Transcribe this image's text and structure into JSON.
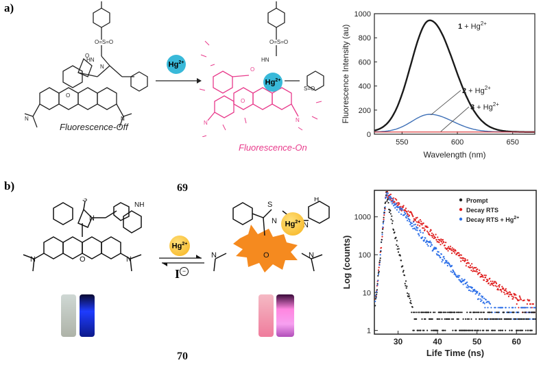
{
  "panels": {
    "a": {
      "label": "a)",
      "caption_off": "Fluorescence-Off",
      "caption_on": "Fluorescence-On",
      "reagent": "Hg2+",
      "reagent_base": "Hg",
      "reagent_sup": "2+"
    },
    "b": {
      "label": "b)",
      "compound_top": "69",
      "compound_bottom": "70",
      "reagent_base": "Hg",
      "reagent_sup": "2+",
      "reverse_reagent": "I"
    }
  },
  "colors": {
    "ion_a": "#39b9d9",
    "ion_b": "#f6b21c",
    "pink": "#e83a8b",
    "orange": "#f58a1f",
    "series_1": "#1a1a1a",
    "series_2": "#3d6fb6",
    "series_3": "#d62728",
    "prompt": "#222222",
    "decay": "#e02020",
    "decay_hg": "#2c6fe8"
  },
  "chart_data": [
    {
      "type": "line",
      "xlabel": "Wavelength (nm)",
      "ylabel": "Fluorescence Intensity (au)",
      "xlim": [
        525,
        670
      ],
      "ylim": [
        0,
        1000
      ],
      "xticks": [
        550,
        600,
        650
      ],
      "yticks": [
        0,
        200,
        400,
        600,
        800,
        1000
      ],
      "series": [
        {
          "name": "1 + Hg2+",
          "label_base": "1",
          "label_rest": " + Hg",
          "label_sup": "2+",
          "peak_x": 575,
          "peak_y": 945,
          "width": 17,
          "baseline": 18
        },
        {
          "name": "2 + Hg2+",
          "label_base": "2",
          "label_rest": " + Hg",
          "label_sup": "2+",
          "peak_x": 575,
          "peak_y": 165,
          "width": 16,
          "baseline": 18
        },
        {
          "name": "3 + Hg2+",
          "label_base": "3",
          "label_rest": " + Hg",
          "label_sup": "2+",
          "peak_x": 575,
          "peak_y": 20,
          "width": 60,
          "baseline": 18
        }
      ]
    },
    {
      "type": "scatter",
      "xlabel": "Life Time (ns)",
      "ylabel": "Log (counts)",
      "yscale": "log",
      "xlim": [
        24,
        65
      ],
      "ylim": [
        0.8,
        5000
      ],
      "xticks": [
        30,
        40,
        50,
        60
      ],
      "yticks": [
        1,
        10,
        100,
        1000
      ],
      "series": [
        {
          "name": "Prompt",
          "peak_x": 27,
          "peak_y": 4000,
          "tau": 0.9,
          "floor": 1
        },
        {
          "name": "Decay RTS",
          "peak_x": 27,
          "peak_y": 4000,
          "tau": 4.8,
          "floor": 3
        },
        {
          "name": "Decay RTS + Hg2+",
          "label_base": "Decay RTS + Hg",
          "label_sup": "2+",
          "peak_x": 27,
          "peak_y": 4000,
          "tau": 3.6,
          "floor": 2
        }
      ]
    }
  ]
}
